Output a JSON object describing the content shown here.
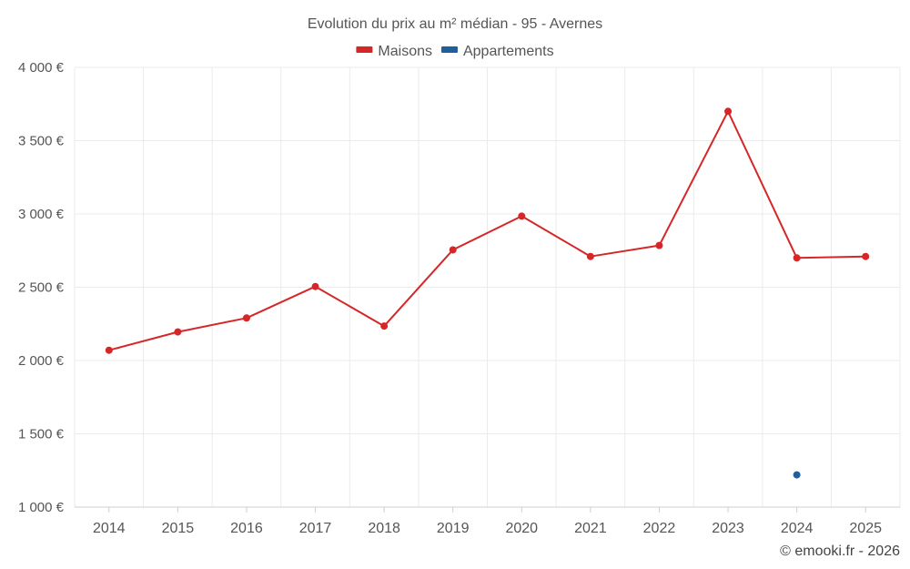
{
  "chart_data": {
    "type": "line",
    "title": "Evolution du prix au m² médian - 95 - Avernes",
    "categories": [
      "2014",
      "2015",
      "2016",
      "2017",
      "2018",
      "2019",
      "2020",
      "2021",
      "2022",
      "2023",
      "2024",
      "2025"
    ],
    "ylim": [
      1000,
      4000
    ],
    "yticks": [
      1000,
      1500,
      2000,
      2500,
      3000,
      3500,
      4000
    ],
    "ytick_labels": [
      "1 000 €",
      "1 500 €",
      "2 000 €",
      "2 500 €",
      "3 000 €",
      "3 500 €",
      "4 000 €"
    ],
    "grid": true,
    "legend_position": "top-center",
    "series": [
      {
        "name": "Maisons",
        "color": "#d62728",
        "values": [
          2070,
          2195,
          2290,
          2505,
          2235,
          2755,
          2985,
          2710,
          2785,
          3700,
          2700,
          2710
        ]
      },
      {
        "name": "Appartements",
        "color": "#1f5f9c",
        "values": [
          null,
          null,
          null,
          null,
          null,
          null,
          null,
          null,
          null,
          null,
          1220,
          null
        ]
      }
    ]
  },
  "credit": "© emooki.fr - 2026"
}
